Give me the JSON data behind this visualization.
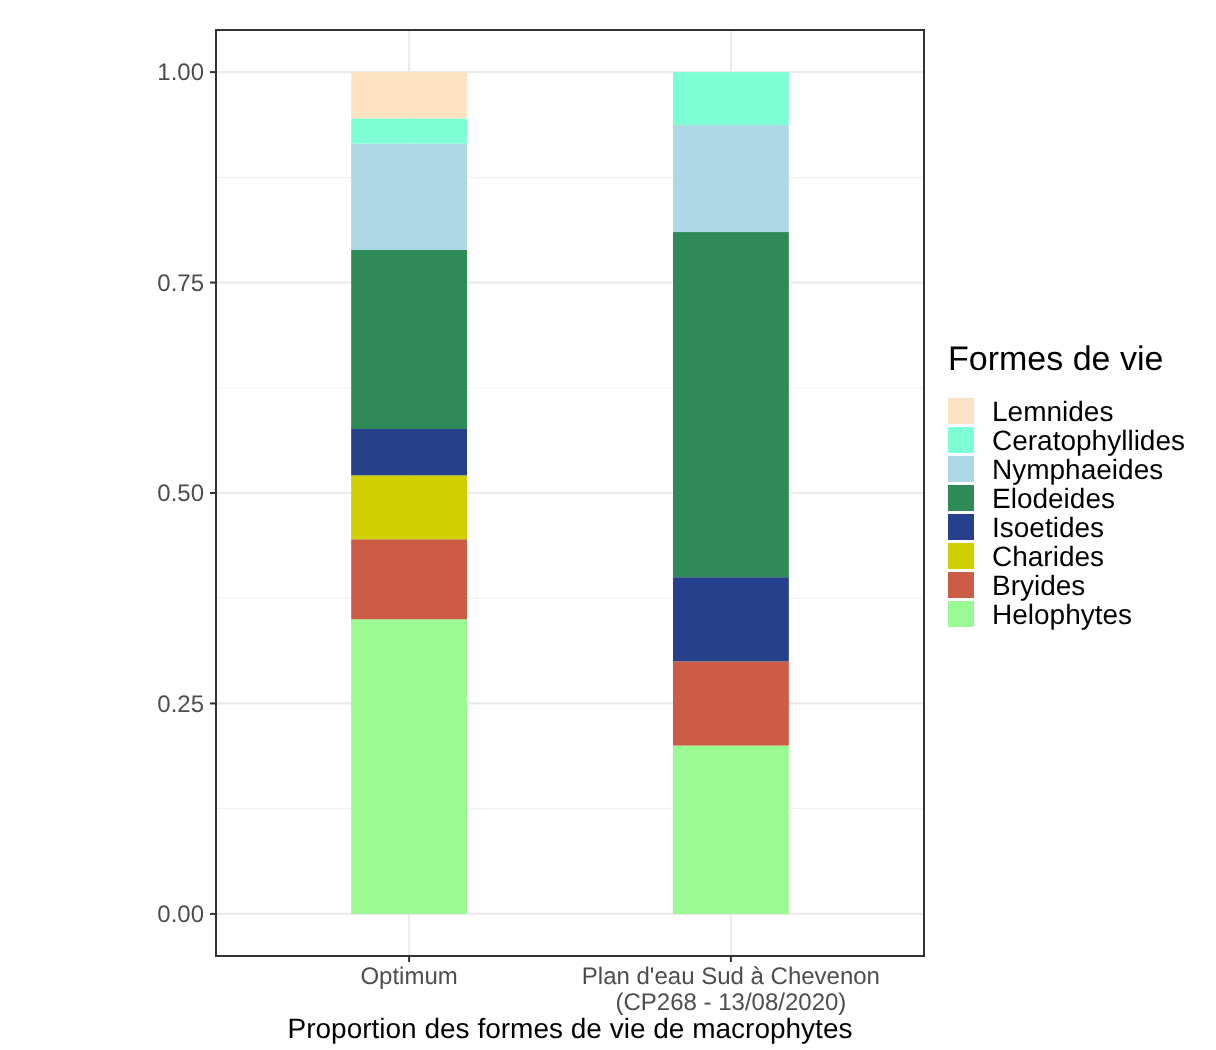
{
  "chart_data": {
    "type": "bar",
    "stacked": true,
    "xlabel": "Proportion des formes de vie de macrophytes",
    "legend_title": "Formes de vie",
    "categories": [
      "Optimum",
      "Plan d'eau Sud à Chevenon\n(CP268 - 13/08/2020)"
    ],
    "series": [
      {
        "name": "Helophytes",
        "color": "#9afa94",
        "values": [
          0.35,
          0.2
        ]
      },
      {
        "name": "Bryides",
        "color": "#cd5c47",
        "values": [
          0.095,
          0.1
        ]
      },
      {
        "name": "Charides",
        "color": "#d0cf00",
        "values": [
          0.076,
          0
        ]
      },
      {
        "name": "Isoetides",
        "color": "#26408b",
        "values": [
          0.055,
          0.1
        ]
      },
      {
        "name": "Elodeides",
        "color": "#2e8b57",
        "values": [
          0.213,
          0.41
        ]
      },
      {
        "name": "Nymphaeides",
        "color": "#add8e6",
        "values": [
          0.126,
          0.127
        ]
      },
      {
        "name": "Ceratophyllides",
        "color": "#7fffd4",
        "values": [
          0.03,
          0.063
        ]
      },
      {
        "name": "Lemnides",
        "color": "#fde3c4",
        "values": [
          0.055,
          0
        ]
      }
    ],
    "ylim": [
      -0.05,
      1.05
    ],
    "yticks": [
      {
        "value": 0,
        "label": "0.00"
      },
      {
        "value": 0.25,
        "label": "0.25"
      },
      {
        "value": 0.5,
        "label": "0.50"
      },
      {
        "value": 0.75,
        "label": "0.75"
      },
      {
        "value": 1,
        "label": "1.00"
      }
    ],
    "grid": true,
    "legend": "right"
  }
}
